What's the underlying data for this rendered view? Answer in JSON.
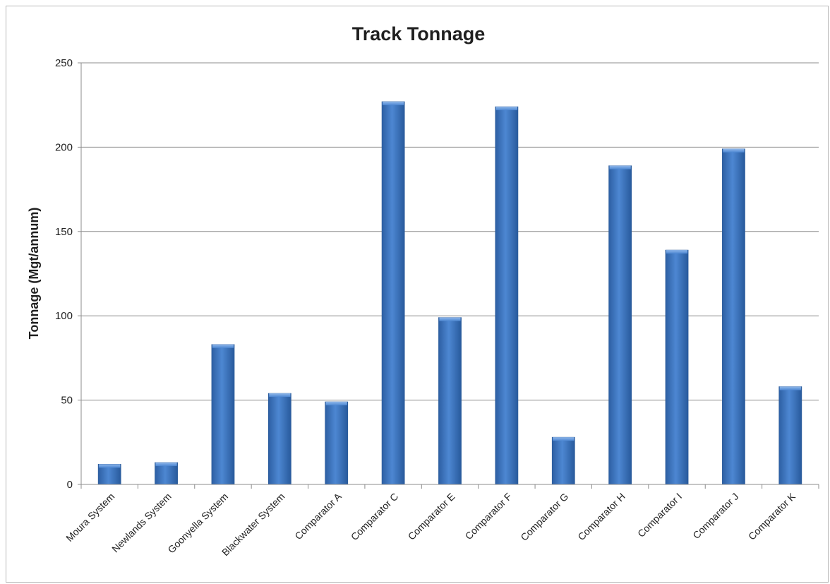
{
  "chart_data": {
    "type": "bar",
    "title": "Track Tonnage",
    "xlabel": "",
    "ylabel": "Tonnage (Mgt/annum)",
    "ylim": [
      0,
      250
    ],
    "yticks": [
      "0",
      "50",
      "100",
      "150",
      "200",
      "250"
    ],
    "grid": true,
    "legend": "none",
    "bar_color": "#3f78c4",
    "categories": [
      "Moura System",
      "Newlands System",
      "Goonyella System",
      "Blackwater System",
      "Comparator A",
      "Comparator C",
      "Comparator E",
      "Comparator F",
      "Comparator G",
      "Comparator H",
      "Comparator I",
      "Comparator J",
      "Comparator K"
    ],
    "values": [
      12,
      13,
      83,
      54,
      49,
      227,
      99,
      224,
      28,
      189,
      139,
      199,
      58
    ]
  }
}
